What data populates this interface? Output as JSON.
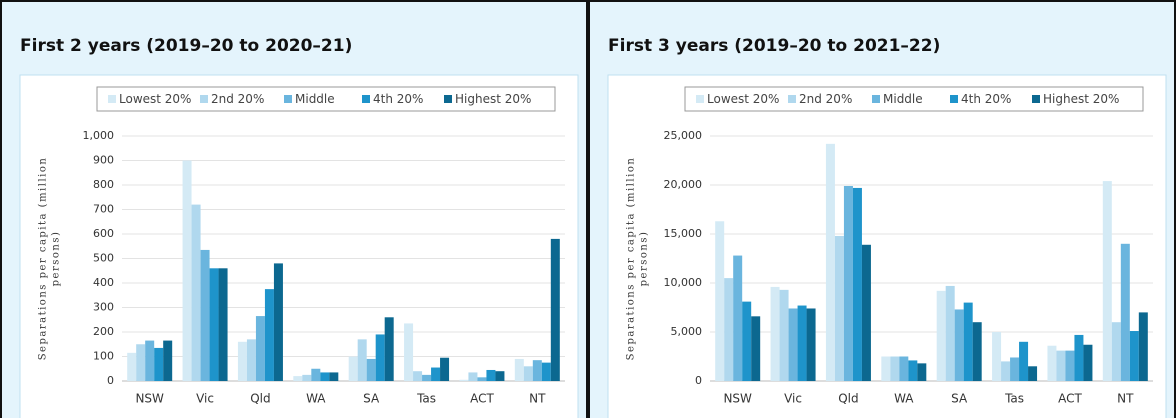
{
  "chart_data": [
    {
      "type": "bar",
      "title": "First 2 years (2019–20 to 2020–21)",
      "ylabel": [
        "Separations per capita (million",
        "persons)"
      ],
      "categories": [
        "NSW",
        "Vic",
        "Qld",
        "WA",
        "SA",
        "Tas",
        "ACT",
        "NT"
      ],
      "series": [
        {
          "name": "Lowest 20%",
          "color": "#d4eaf5",
          "values": [
            115,
            900,
            160,
            20,
            100,
            235,
            5,
            90
          ]
        },
        {
          "name": "2nd 20%",
          "color": "#b0d8ee",
          "values": [
            150,
            720,
            170,
            25,
            170,
            40,
            35,
            60
          ]
        },
        {
          "name": "Middle",
          "color": "#6ab5de",
          "values": [
            165,
            535,
            265,
            50,
            90,
            25,
            15,
            85
          ]
        },
        {
          "name": "4th 20%",
          "color": "#1e94cb",
          "values": [
            135,
            460,
            375,
            35,
            190,
            55,
            45,
            75
          ]
        },
        {
          "name": "Highest 20%",
          "color": "#0c6890",
          "values": [
            165,
            460,
            480,
            35,
            260,
            95,
            40,
            580
          ]
        }
      ],
      "ylim": [
        0,
        1000
      ],
      "yticks": [
        0,
        100,
        200,
        300,
        400,
        500,
        600,
        700,
        800,
        900,
        {
          "value": 1000,
          "label": "1,000"
        }
      ],
      "grid": true,
      "legend": "top"
    },
    {
      "type": "bar",
      "title": "First 3 years (2019–20 to 2021–22)",
      "ylabel": [
        "Separations per capita (million",
        "persons)"
      ],
      "categories": [
        "NSW",
        "Vic",
        "Qld",
        "WA",
        "SA",
        "Tas",
        "ACT",
        "NT"
      ],
      "series": [
        {
          "name": "Lowest 20%",
          "color": "#d4eaf5",
          "values": [
            16300,
            9600,
            24200,
            2500,
            9200,
            5000,
            3600,
            20400
          ]
        },
        {
          "name": "2nd 20%",
          "color": "#b0d8ee",
          "values": [
            10500,
            9300,
            14800,
            2500,
            9700,
            2000,
            3100,
            6000
          ]
        },
        {
          "name": "Middle",
          "color": "#6ab5de",
          "values": [
            12800,
            7400,
            19900,
            2500,
            7300,
            2400,
            3100,
            14000
          ]
        },
        {
          "name": "4th 20%",
          "color": "#1e94cb",
          "values": [
            8100,
            7700,
            19700,
            2100,
            8000,
            4000,
            4700,
            5100
          ]
        },
        {
          "name": "Highest 20%",
          "color": "#0c6890",
          "values": [
            6600,
            7400,
            13900,
            1800,
            6000,
            1500,
            3700,
            7000
          ]
        }
      ],
      "ylim": [
        0,
        25000
      ],
      "yticks": [
        0,
        {
          "value": 5000,
          "label": "5,000"
        },
        {
          "value": 10000,
          "label": "10,000"
        },
        {
          "value": 15000,
          "label": "15,000"
        },
        {
          "value": 20000,
          "label": "20,000"
        },
        {
          "value": 25000,
          "label": "25,000"
        }
      ],
      "grid": true,
      "legend": "top"
    }
  ]
}
